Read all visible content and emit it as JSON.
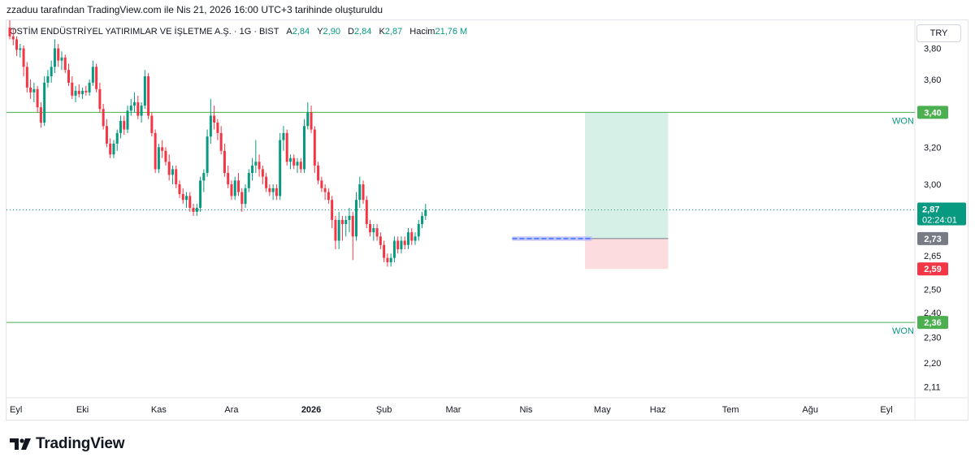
{
  "header": {
    "caption": "zzaduu tarafından TradingView.com ile Nis 21, 2026 16:00 UTC+3 tarihinde oluşturuldu"
  },
  "legend": {
    "symbol": "OSTİM ENDÜSTRİYEL YATIRIMLAR VE İŞLETME A.Ş. · 1G · BIST",
    "open_label": "A",
    "open_value": "2,84",
    "high_label": "Y",
    "high_value": "2,90",
    "low_label": "D",
    "low_value": "2,84",
    "close_label": "K",
    "close_value": "2,87",
    "volume_label": "Hacim",
    "volume_value": "21,76 M"
  },
  "currency": "TRY",
  "logo": {
    "text": "TradingView",
    "icon": "tradingview-logo-icon"
  },
  "colors": {
    "up": "#089981",
    "down": "#f23645",
    "level": "#4caf50",
    "target_fill": "#d6efe7",
    "stop_fill": "#fddcdf",
    "entry_badge": "#787b86",
    "stop_badge": "#f23645",
    "entry_line": "#2962ff",
    "entry_box": "#b2b5f9"
  },
  "chart_data": {
    "type": "candlestick",
    "y_scale": "log",
    "ylim": [
      2.07,
      3.99
    ],
    "y_ticks": [
      "3,80",
      "3,60",
      "3,20",
      "3,00",
      "2,65",
      "2,50",
      "2,40",
      "2,30",
      "2,20",
      "2,11"
    ],
    "y_tick_values": [
      3.8,
      3.6,
      3.2,
      3.0,
      2.65,
      2.5,
      2.4,
      2.3,
      2.2,
      2.11
    ],
    "x_ticks": [
      {
        "label": "Eyl",
        "index": 0
      },
      {
        "label": "Eki",
        "index": 21
      },
      {
        "label": "Kas",
        "index": 43
      },
      {
        "label": "Ara",
        "index": 64
      },
      {
        "label": "2026",
        "index": 87,
        "bold": true
      },
      {
        "label": "Şub",
        "index": 108
      },
      {
        "label": "Mar",
        "index": 128
      },
      {
        "label": "Nis",
        "index": 149
      },
      {
        "label": "May",
        "index": 171
      },
      {
        "label": "Haz",
        "index": 187
      },
      {
        "label": "Tem",
        "index": 208
      },
      {
        "label": "Ağu",
        "index": 231
      },
      {
        "label": "Eyl",
        "index": 253
      }
    ],
    "levels": [
      {
        "value": 3.4,
        "label": "3,40",
        "note": "WON"
      },
      {
        "value": 2.36,
        "label": "2,36",
        "note": "WON"
      }
    ],
    "last_price": {
      "label": "2,87",
      "countdown": "02:24:01",
      "value": 2.87
    },
    "position": {
      "entry": 2.73,
      "entry_label": "2,73",
      "stop": 2.59,
      "stop_label": "2,59",
      "target": 3.4,
      "start_index": 166,
      "end_index": 190
    },
    "entry_zone": {
      "low": 2.72,
      "high": 2.74,
      "start_index": 145,
      "end_index": 168
    },
    "candles": [
      [
        3.94,
        3.99,
        3.86,
        3.88
      ],
      [
        3.88,
        3.93,
        3.82,
        3.86
      ],
      [
        3.86,
        3.88,
        3.75,
        3.79
      ],
      [
        3.79,
        3.83,
        3.74,
        3.8
      ],
      [
        3.8,
        3.82,
        3.62,
        3.68
      ],
      [
        3.68,
        3.71,
        3.52,
        3.55
      ],
      [
        3.55,
        3.6,
        3.48,
        3.52
      ],
      [
        3.52,
        3.58,
        3.46,
        3.54
      ],
      [
        3.54,
        3.56,
        3.4,
        3.43
      ],
      [
        3.43,
        3.46,
        3.31,
        3.34
      ],
      [
        3.34,
        3.62,
        3.32,
        3.58
      ],
      [
        3.58,
        3.66,
        3.55,
        3.62
      ],
      [
        3.62,
        3.72,
        3.58,
        3.68
      ],
      [
        3.68,
        3.86,
        3.64,
        3.8
      ],
      [
        3.8,
        3.83,
        3.68,
        3.72
      ],
      [
        3.72,
        3.78,
        3.66,
        3.74
      ],
      [
        3.74,
        3.76,
        3.64,
        3.66
      ],
      [
        3.66,
        3.7,
        3.56,
        3.58
      ],
      [
        3.58,
        3.62,
        3.48,
        3.5
      ],
      [
        3.5,
        3.56,
        3.46,
        3.53
      ],
      [
        3.53,
        3.57,
        3.49,
        3.51
      ],
      [
        3.51,
        3.55,
        3.48,
        3.53
      ],
      [
        3.53,
        3.56,
        3.5,
        3.52
      ],
      [
        3.52,
        3.6,
        3.5,
        3.58
      ],
      [
        3.58,
        3.72,
        3.56,
        3.68
      ],
      [
        3.68,
        3.7,
        3.52,
        3.54
      ],
      [
        3.54,
        3.58,
        3.4,
        3.42
      ],
      [
        3.42,
        3.45,
        3.3,
        3.32
      ],
      [
        3.32,
        3.36,
        3.2,
        3.22
      ],
      [
        3.22,
        3.25,
        3.14,
        3.16
      ],
      [
        3.16,
        3.24,
        3.14,
        3.22
      ],
      [
        3.22,
        3.3,
        3.18,
        3.28
      ],
      [
        3.28,
        3.38,
        3.25,
        3.35
      ],
      [
        3.35,
        3.38,
        3.27,
        3.3
      ],
      [
        3.3,
        3.44,
        3.28,
        3.41
      ],
      [
        3.41,
        3.48,
        3.38,
        3.44
      ],
      [
        3.44,
        3.52,
        3.4,
        3.46
      ],
      [
        3.46,
        3.5,
        3.36,
        3.38
      ],
      [
        3.38,
        3.46,
        3.34,
        3.44
      ],
      [
        3.44,
        3.66,
        3.42,
        3.62
      ],
      [
        3.62,
        3.64,
        3.36,
        3.38
      ],
      [
        3.38,
        3.4,
        3.26,
        3.28
      ],
      [
        3.28,
        3.3,
        3.06,
        3.08
      ],
      [
        3.08,
        3.22,
        3.06,
        3.2
      ],
      [
        3.2,
        3.24,
        3.14,
        3.18
      ],
      [
        3.18,
        3.2,
        3.1,
        3.12
      ],
      [
        3.12,
        3.16,
        3.02,
        3.05
      ],
      [
        3.05,
        3.1,
        3.0,
        3.08
      ],
      [
        3.08,
        3.1,
        2.98,
        3.0
      ],
      [
        3.0,
        3.02,
        2.93,
        2.95
      ],
      [
        2.95,
        2.98,
        2.9,
        2.92
      ],
      [
        2.92,
        2.96,
        2.88,
        2.94
      ],
      [
        2.94,
        2.96,
        2.86,
        2.88
      ],
      [
        2.88,
        2.9,
        2.84,
        2.86
      ],
      [
        2.86,
        2.9,
        2.84,
        2.88
      ],
      [
        2.88,
        3.04,
        2.86,
        3.02
      ],
      [
        3.02,
        3.08,
        2.96,
        3.06
      ],
      [
        3.06,
        3.3,
        3.04,
        3.26
      ],
      [
        3.26,
        3.48,
        3.22,
        3.38
      ],
      [
        3.38,
        3.44,
        3.3,
        3.34
      ],
      [
        3.34,
        3.36,
        3.24,
        3.28
      ],
      [
        3.28,
        3.32,
        3.16,
        3.18
      ],
      [
        3.18,
        3.22,
        3.04,
        3.06
      ],
      [
        3.06,
        3.1,
        2.98,
        3.0
      ],
      [
        3.0,
        3.02,
        2.92,
        2.94
      ],
      [
        2.94,
        3.04,
        2.92,
        3.02
      ],
      [
        3.02,
        3.06,
        2.94,
        2.96
      ],
      [
        2.96,
        2.98,
        2.86,
        2.9
      ],
      [
        2.9,
        3.0,
        2.88,
        2.98
      ],
      [
        2.98,
        3.08,
        2.96,
        3.06
      ],
      [
        3.06,
        3.14,
        3.02,
        3.1
      ],
      [
        3.1,
        3.24,
        3.06,
        3.12
      ],
      [
        3.12,
        3.16,
        3.04,
        3.08
      ],
      [
        3.08,
        3.1,
        3.0,
        3.04
      ],
      [
        3.04,
        3.06,
        2.96,
        2.98
      ],
      [
        2.98,
        3.0,
        2.94,
        2.96
      ],
      [
        2.96,
        3.0,
        2.92,
        2.98
      ],
      [
        2.98,
        3.0,
        2.92,
        2.94
      ],
      [
        2.94,
        3.28,
        2.92,
        3.24
      ],
      [
        3.24,
        3.32,
        3.18,
        3.28
      ],
      [
        3.28,
        3.3,
        3.1,
        3.12
      ],
      [
        3.12,
        3.16,
        3.08,
        3.14
      ],
      [
        3.14,
        3.16,
        3.08,
        3.1
      ],
      [
        3.1,
        3.14,
        3.06,
        3.12
      ],
      [
        3.12,
        3.14,
        3.06,
        3.08
      ],
      [
        3.08,
        3.36,
        3.06,
        3.32
      ],
      [
        3.32,
        3.46,
        3.3,
        3.4
      ],
      [
        3.4,
        3.44,
        3.28,
        3.3
      ],
      [
        3.3,
        3.32,
        3.06,
        3.1
      ],
      [
        3.1,
        3.12,
        3.0,
        3.02
      ],
      [
        3.02,
        3.04,
        2.96,
        2.98
      ],
      [
        2.98,
        3.0,
        2.92,
        2.96
      ],
      [
        2.96,
        2.98,
        2.9,
        2.92
      ],
      [
        2.92,
        2.94,
        2.78,
        2.82
      ],
      [
        2.82,
        2.84,
        2.68,
        2.72
      ],
      [
        2.72,
        2.86,
        2.68,
        2.82
      ],
      [
        2.82,
        2.84,
        2.72,
        2.8
      ],
      [
        2.8,
        2.84,
        2.74,
        2.82
      ],
      [
        2.82,
        2.88,
        2.76,
        2.84
      ],
      [
        2.84,
        2.86,
        2.63,
        2.74
      ],
      [
        2.74,
        2.96,
        2.72,
        2.92
      ],
      [
        2.92,
        3.04,
        2.88,
        3.0
      ],
      [
        3.0,
        3.02,
        2.9,
        2.92
      ],
      [
        2.92,
        2.94,
        2.78,
        2.8
      ],
      [
        2.8,
        2.82,
        2.74,
        2.76
      ],
      [
        2.76,
        2.8,
        2.72,
        2.78
      ],
      [
        2.78,
        2.8,
        2.72,
        2.74
      ],
      [
        2.74,
        2.76,
        2.68,
        2.7
      ],
      [
        2.7,
        2.72,
        2.62,
        2.64
      ],
      [
        2.64,
        2.66,
        2.6,
        2.62
      ],
      [
        2.62,
        2.66,
        2.6,
        2.64
      ],
      [
        2.64,
        2.74,
        2.62,
        2.72
      ],
      [
        2.72,
        2.74,
        2.66,
        2.68
      ],
      [
        2.68,
        2.74,
        2.66,
        2.72
      ],
      [
        2.72,
        2.74,
        2.68,
        2.7
      ],
      [
        2.7,
        2.78,
        2.68,
        2.76
      ],
      [
        2.76,
        2.78,
        2.7,
        2.72
      ],
      [
        2.72,
        2.76,
        2.7,
        2.74
      ],
      [
        2.74,
        2.82,
        2.72,
        2.8
      ],
      [
        2.8,
        2.86,
        2.78,
        2.84
      ],
      [
        2.84,
        2.9,
        2.82,
        2.87
      ]
    ]
  }
}
